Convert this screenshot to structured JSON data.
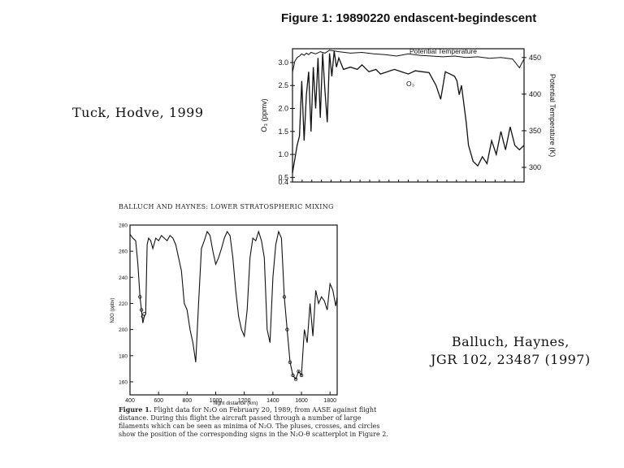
{
  "notes": {
    "tuck": "Tuck, Hodve, 1999",
    "balluch_line1": "Balluch, Haynes,",
    "balluch_line2": "JGR 102, 23487 (1997)"
  },
  "figure1": {
    "title": "Figure 1: 19890220 endascent-begindescent"
  },
  "figure2": {
    "header": "BALLUCH AND HAYNES: LOWER STRATOSPHERIC MIXING",
    "caption_bold": "Figure 1.",
    "caption_text": "Flight data for N₂O on February 20, 1989, from AASE against flight distance. During this flight the aircraft passed through a number of large filaments which can be seen as minima of N₂O. The pluses, crosses, and circles show the position of the corresponding signs in the N₂O-θ scatterplot in Figure 2."
  },
  "chart_data": [
    {
      "type": "line",
      "title": "Figure 1: 19890220 endascent-begindescent",
      "ylabel": "O₃ (ppmv)",
      "y2label": "Potential Temperature (K)",
      "ylim": [
        0.4,
        3.3
      ],
      "y2lim": [
        280,
        462
      ],
      "yticks": [
        "0.4",
        "0.5",
        "1.0",
        "1.5",
        "2.0",
        "2.5",
        "3.0"
      ],
      "y2ticks": [
        "300",
        "350",
        "400",
        "450"
      ],
      "annotations": [
        "Potential Temperature",
        "O₃"
      ],
      "series": [
        {
          "axis": "left",
          "x": [
            0,
            0.01,
            0.02,
            0.03,
            0.04,
            0.05,
            0.06,
            0.07,
            0.08,
            0.09,
            0.1,
            0.11,
            0.12,
            0.13,
            0.14,
            0.15,
            0.16,
            0.17,
            0.18,
            0.19,
            0.2,
            0.22,
            0.25,
            0.28,
            0.3,
            0.33,
            0.36,
            0.38,
            0.41,
            0.44,
            0.47,
            0.5,
            0.53,
            0.56,
            0.59,
            0.62,
            0.64,
            0.66,
            0.68,
            0.7,
            0.71,
            0.72,
            0.73,
            0.74,
            0.75,
            0.76,
            0.78,
            0.8,
            0.82,
            0.84,
            0.86,
            0.88,
            0.9,
            0.92,
            0.94,
            0.96,
            0.98,
            1.0
          ],
          "values": [
            0.6,
            0.9,
            1.2,
            1.4,
            2.6,
            1.3,
            2.3,
            2.8,
            1.5,
            2.9,
            2.0,
            3.1,
            1.8,
            3.2,
            2.4,
            1.7,
            3.2,
            2.7,
            3.25,
            2.9,
            3.1,
            2.85,
            2.9,
            2.85,
            2.95,
            2.8,
            2.85,
            2.75,
            2.8,
            2.85,
            2.8,
            2.75,
            2.82,
            2.8,
            2.78,
            2.5,
            2.2,
            2.8,
            2.75,
            2.7,
            2.6,
            2.3,
            2.5,
            2.1,
            1.7,
            1.2,
            0.85,
            0.75,
            0.95,
            0.8,
            1.3,
            1.0,
            1.5,
            1.1,
            1.6,
            1.2,
            1.1,
            1.2
          ]
        },
        {
          "axis": "right",
          "x": [
            0,
            0.01,
            0.02,
            0.03,
            0.04,
            0.05,
            0.06,
            0.07,
            0.08,
            0.1,
            0.12,
            0.14,
            0.16,
            0.2,
            0.25,
            0.3,
            0.35,
            0.4,
            0.45,
            0.5,
            0.55,
            0.6,
            0.65,
            0.7,
            0.75,
            0.8,
            0.85,
            0.9,
            0.95,
            0.97,
            0.98,
            0.99,
            1.0
          ],
          "values": [
            430,
            445,
            450,
            452,
            455,
            453,
            456,
            454,
            457,
            455,
            458,
            456,
            460,
            458,
            456,
            457,
            455,
            454,
            452,
            455,
            453,
            452,
            451,
            452,
            450,
            451,
            449,
            450,
            448,
            440,
            436,
            442,
            448
          ]
        }
      ]
    },
    {
      "type": "line",
      "header": "BALLUCH AND HAYNES: LOWER STRATOSPHERIC MIXING",
      "xlabel": "flight distance (km)",
      "ylabel": "N2O (ppbv)",
      "xlim": [
        400,
        1850
      ],
      "ylim": [
        150,
        280
      ],
      "xticks": [
        400,
        600,
        800,
        1000,
        1200,
        1400,
        1600,
        1800
      ],
      "yticks": [
        160,
        180,
        200,
        220,
        240,
        260,
        280
      ],
      "series": [
        {
          "x": [
            400,
            420,
            440,
            455,
            470,
            480,
            490,
            500,
            510,
            520,
            530,
            545,
            560,
            580,
            600,
            620,
            640,
            660,
            680,
            700,
            720,
            740,
            760,
            780,
            800,
            820,
            840,
            860,
            880,
            900,
            920,
            940,
            960,
            980,
            1000,
            1020,
            1040,
            1060,
            1080,
            1100,
            1120,
            1140,
            1160,
            1180,
            1200,
            1220,
            1240,
            1260,
            1280,
            1300,
            1320,
            1340,
            1360,
            1380,
            1400,
            1420,
            1440,
            1460,
            1480,
            1500,
            1520,
            1540,
            1560,
            1580,
            1600,
            1620,
            1640,
            1660,
            1680,
            1700,
            1720,
            1740,
            1760,
            1780,
            1800,
            1820,
            1840,
            1850
          ],
          "values": [
            273,
            270,
            268,
            250,
            225,
            215,
            205,
            210,
            212,
            265,
            270,
            268,
            262,
            270,
            268,
            272,
            270,
            268,
            272,
            270,
            265,
            255,
            245,
            220,
            215,
            200,
            190,
            175,
            220,
            262,
            268,
            275,
            272,
            260,
            250,
            255,
            262,
            270,
            275,
            272,
            255,
            230,
            210,
            200,
            195,
            215,
            255,
            270,
            268,
            275,
            268,
            255,
            200,
            190,
            240,
            265,
            275,
            270,
            225,
            200,
            175,
            165,
            162,
            168,
            165,
            200,
            190,
            220,
            195,
            230,
            220,
            225,
            222,
            215,
            235,
            230,
            218,
            225
          ]
        }
      ]
    }
  ]
}
